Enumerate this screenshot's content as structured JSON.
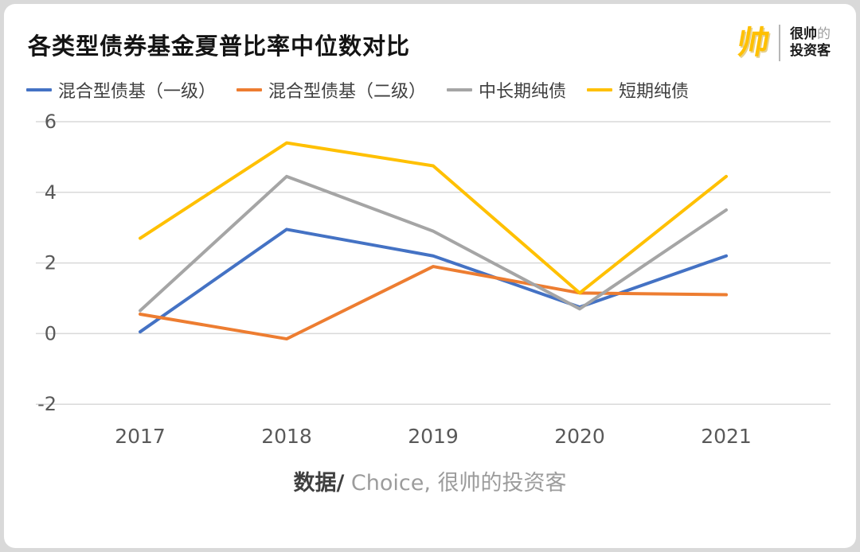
{
  "header": {
    "title": "各类型债券基金夏普比率中位数对比",
    "logo": {
      "icon_text": "帅",
      "line1_bold": "很帅",
      "line1_light": "的",
      "line2": "投资客"
    }
  },
  "footer": {
    "source_prefix": "数据/",
    "source_rest": " Choice, 很帅的投资客"
  },
  "chart_data": {
    "type": "line",
    "title": "各类型债券基金夏普比率中位数对比",
    "categories": [
      "2017",
      "2018",
      "2019",
      "2020",
      "2021"
    ],
    "series": [
      {
        "name": "混合型债基（一级）",
        "color": "#4472C4",
        "values": [
          0.05,
          2.95,
          2.2,
          0.75,
          2.2
        ]
      },
      {
        "name": "混合型债基（二级）",
        "color": "#ED7D31",
        "values": [
          0.55,
          -0.15,
          1.9,
          1.15,
          1.1
        ]
      },
      {
        "name": "中长期纯债",
        "color": "#A5A5A5",
        "values": [
          0.65,
          4.45,
          2.9,
          0.7,
          3.5
        ]
      },
      {
        "name": "短期纯债",
        "color": "#FFC000",
        "values": [
          2.7,
          5.4,
          4.75,
          1.15,
          4.45
        ]
      }
    ],
    "ylim": [
      -2,
      6
    ],
    "yticks": [
      6,
      4,
      2,
      0,
      -2
    ],
    "grid": "horizontal",
    "gridline_color": "#d9d9d9",
    "legend_position": "top",
    "xlabel": "",
    "ylabel": ""
  }
}
